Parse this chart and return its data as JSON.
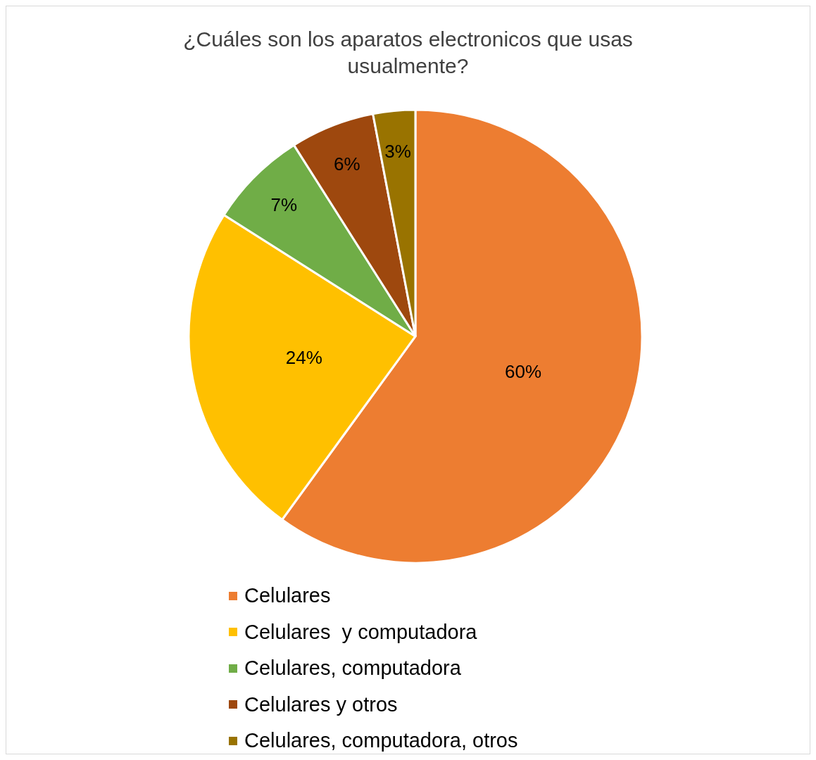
{
  "chart_data": {
    "type": "pie",
    "title": "¿Cuáles son los aparatos electronicos que usas usualmente?",
    "categories": [
      "Celulares",
      "Celulares  y computadora",
      "Celulares, computadora",
      "Celulares y otros",
      "Celulares, computadora, otros"
    ],
    "values": [
      60,
      24,
      7,
      6,
      3
    ],
    "colors": [
      "#ed7d31",
      "#ffc000",
      "#70ad47",
      "#9e480e",
      "#997300"
    ],
    "value_labels": [
      "60%",
      "24%",
      "7%",
      "6%",
      "3%"
    ],
    "legend": "bottom"
  }
}
